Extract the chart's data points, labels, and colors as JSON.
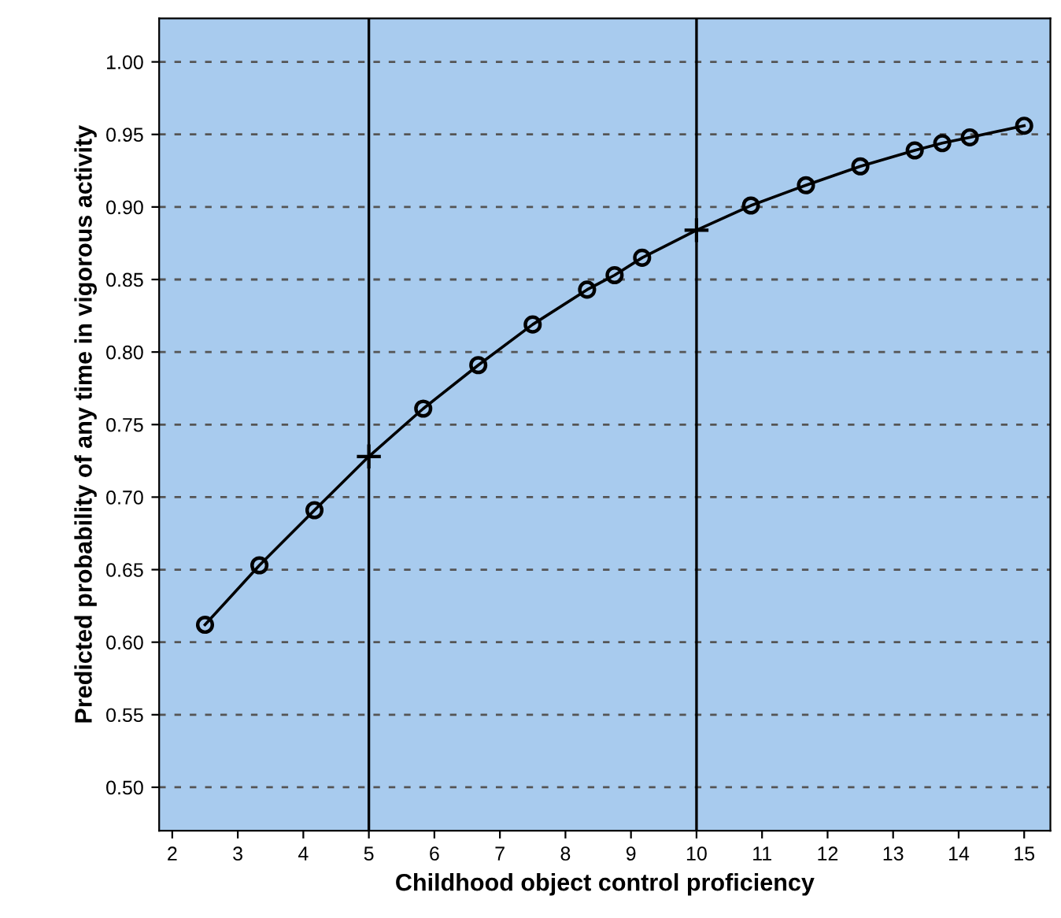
{
  "chart_data": {
    "type": "line",
    "xlabel": "Childhood object control proficiency",
    "ylabel": "Predicted probability of any time in vigorous activity",
    "xlim": [
      1.8,
      15.4
    ],
    "ylim": [
      0.47,
      1.03
    ],
    "xticks": [
      2,
      3,
      4,
      5,
      6,
      7,
      8,
      9,
      10,
      11,
      12,
      13,
      14,
      15
    ],
    "yticks": [
      {
        "value": 0.5,
        "label": "0.50"
      },
      {
        "value": 0.55,
        "label": "0.55"
      },
      {
        "value": 0.6,
        "label": "0.60"
      },
      {
        "value": 0.65,
        "label": "0.65"
      },
      {
        "value": 0.7,
        "label": "0.70"
      },
      {
        "value": 0.75,
        "label": "0.75"
      },
      {
        "value": 0.8,
        "label": "0.80"
      },
      {
        "value": 0.85,
        "label": "0.85"
      },
      {
        "value": 0.9,
        "label": "0.90"
      },
      {
        "value": 0.95,
        "label": "0.95"
      },
      {
        "value": 1.0,
        "label": "1.00"
      }
    ],
    "grid": "y",
    "line_style": "solid",
    "ref_lines": [
      {
        "axis": "x",
        "value": 5,
        "color": "#000000"
      },
      {
        "axis": "x",
        "value": 10,
        "color": "#000000"
      }
    ],
    "series": [
      {
        "type": "line",
        "color": "#000000",
        "marker": "none",
        "x": [
          2.5,
          3.33,
          4.17,
          5,
          5.83,
          6.67,
          7.5,
          8.33,
          8.75,
          9.17,
          10,
          10.83,
          11.67,
          12.5,
          13.33,
          13.75,
          14.17,
          15
        ],
        "values": [
          0.612,
          0.653,
          0.691,
          0.728,
          0.761,
          0.791,
          0.819,
          0.843,
          0.853,
          0.865,
          0.884,
          0.901,
          0.915,
          0.928,
          0.939,
          0.944,
          0.948,
          0.956
        ]
      },
      {
        "type": "scatter",
        "color": "#000000",
        "marker": "circle",
        "x": [
          2.5,
          3.33,
          4.17,
          5.83,
          6.67,
          7.5,
          8.33,
          8.75,
          9.17,
          10.83,
          11.67,
          12.5,
          13.33,
          13.75,
          14.17,
          15
        ],
        "values": [
          0.612,
          0.653,
          0.691,
          0.761,
          0.791,
          0.819,
          0.843,
          0.853,
          0.865,
          0.901,
          0.915,
          0.928,
          0.939,
          0.944,
          0.948,
          0.956
        ]
      },
      {
        "type": "scatter",
        "color": "#000000",
        "marker": "cross",
        "x": [
          5,
          10
        ],
        "values": [
          0.728,
          0.884
        ]
      }
    ]
  }
}
